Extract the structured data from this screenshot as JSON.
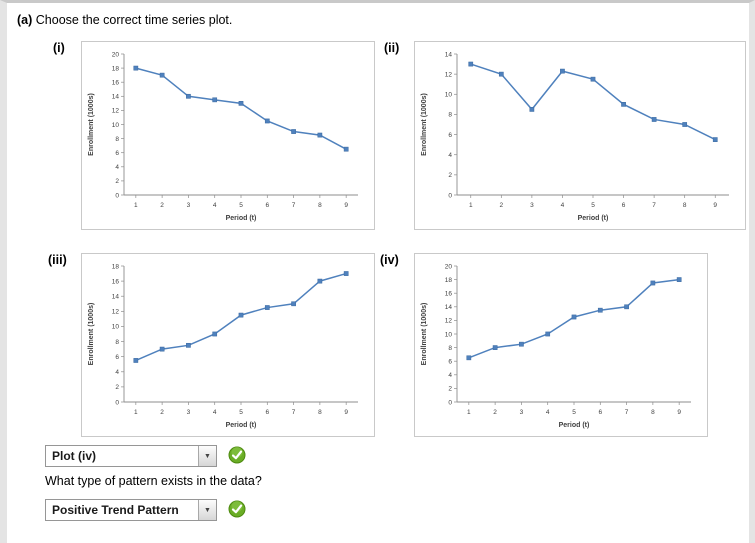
{
  "question_a": {
    "label": "(a)",
    "text": "Choose the correct time series plot."
  },
  "chart_data": [
    {
      "type": "line",
      "label": "(i)",
      "xlabel": "Period (t)",
      "ylabel": "Enrollment (1000s)",
      "x": [
        1,
        2,
        3,
        4,
        5,
        6,
        7,
        8,
        9
      ],
      "values": [
        18,
        17,
        14,
        13.5,
        13,
        10.5,
        9,
        8.5,
        6.5
      ],
      "ylim": [
        0,
        20
      ],
      "ytick_step": 2,
      "color": "#4f81bd",
      "legend": "off",
      "grid": "off"
    },
    {
      "type": "line",
      "label": "(ii)",
      "xlabel": "Period (t)",
      "ylabel": "Enrollment (1000s)",
      "x": [
        1,
        2,
        3,
        4,
        5,
        6,
        7,
        8,
        9
      ],
      "values": [
        13,
        12,
        8.5,
        12.3,
        11.5,
        9,
        7.5,
        7,
        5.5
      ],
      "ylim": [
        0,
        14
      ],
      "ytick_step": 2,
      "color": "#4f81bd",
      "legend": "off",
      "grid": "off"
    },
    {
      "type": "line",
      "label": "(iii)",
      "xlabel": "Period (t)",
      "ylabel": "Enrollment (1000s)",
      "x": [
        1,
        2,
        3,
        4,
        5,
        6,
        7,
        8,
        9
      ],
      "values": [
        5.5,
        7,
        7.5,
        9,
        11.5,
        12.5,
        13,
        16,
        17
      ],
      "ylim": [
        0,
        18
      ],
      "ytick_step": 2,
      "color": "#4f81bd",
      "legend": "off",
      "grid": "off"
    },
    {
      "type": "line",
      "label": "(iv)",
      "xlabel": "Period (t)",
      "ylabel": "Enrollment (1000s)",
      "x": [
        1,
        2,
        3,
        4,
        5,
        6,
        7,
        8,
        9
      ],
      "values": [
        6.5,
        8,
        8.5,
        10,
        12.5,
        13.5,
        14,
        17.5,
        18
      ],
      "ylim": [
        0,
        20
      ],
      "ytick_step": 2,
      "color": "#4f81bd",
      "legend": "off",
      "grid": "off"
    }
  ],
  "plot_select": {
    "value": "Plot (iv)",
    "status": "correct"
  },
  "question_pattern": {
    "text": "What type of pattern exists in the data?"
  },
  "pattern_select": {
    "value": "Positive Trend Pattern",
    "status": "correct"
  },
  "icons": {
    "dropdown_arrow": "▼",
    "check": "✔"
  }
}
